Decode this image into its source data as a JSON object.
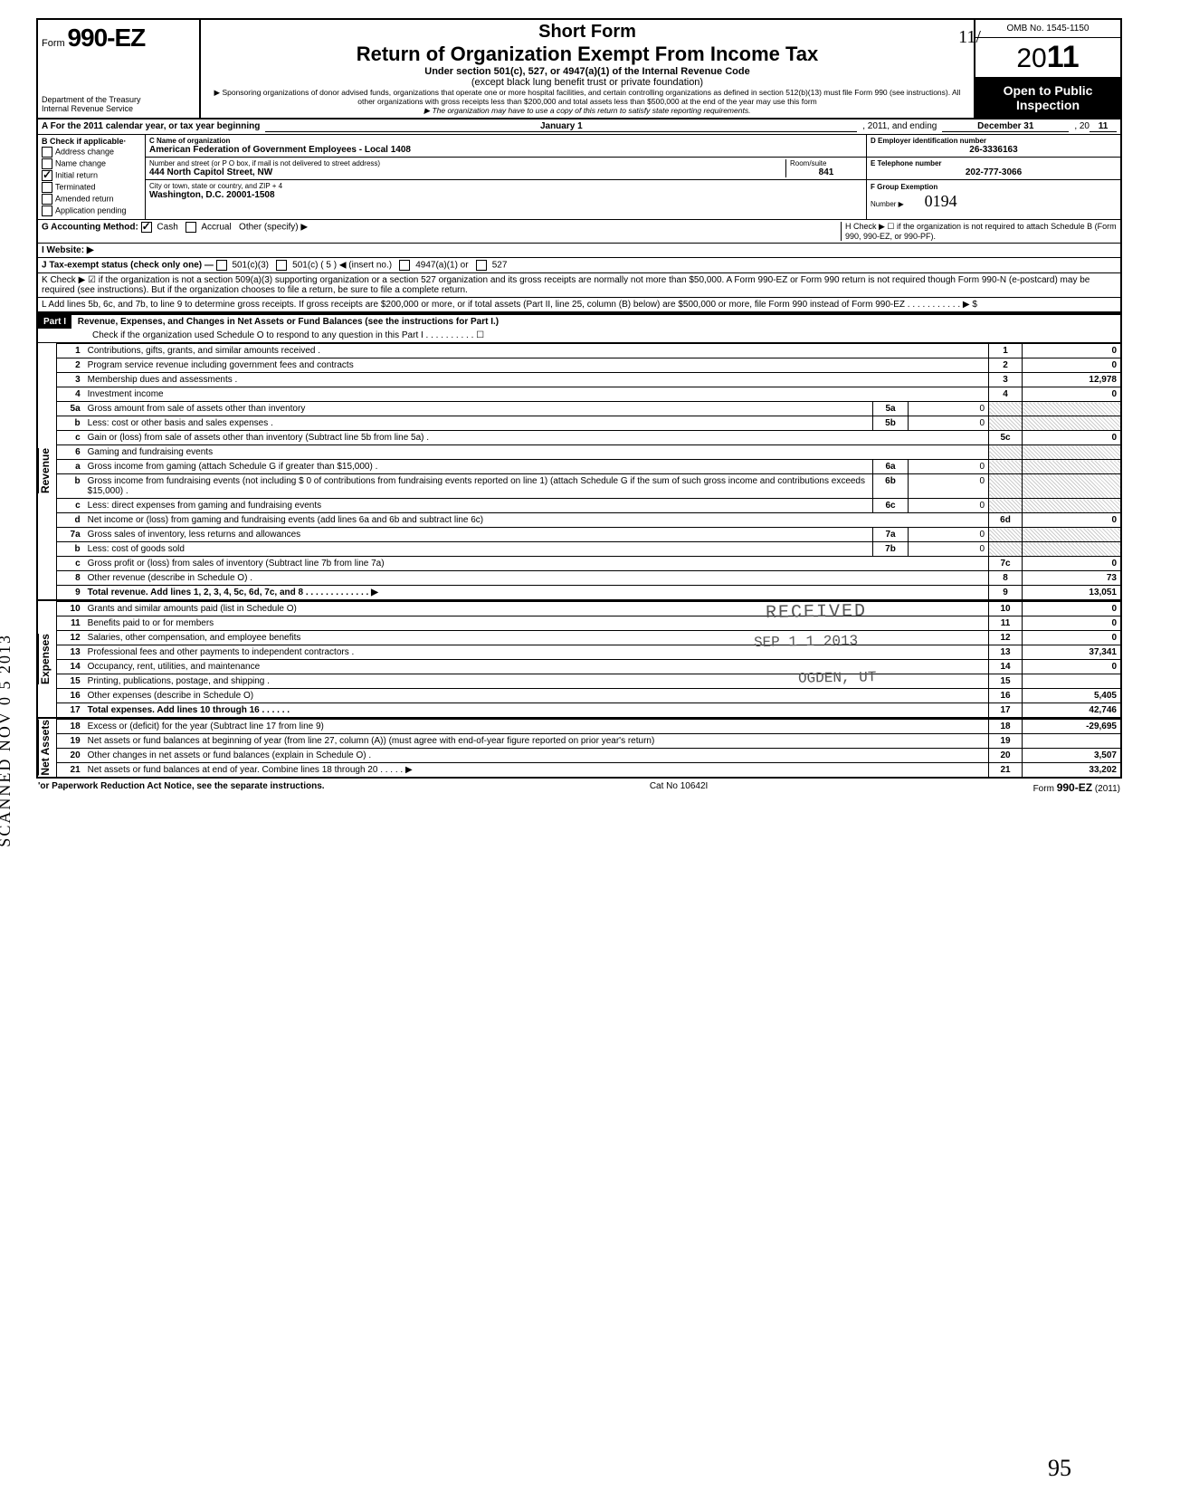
{
  "header": {
    "form_prefix": "Form",
    "form_number": "990-EZ",
    "dept1": "Department of the Treasury",
    "dept2": "Internal Revenue Service",
    "title1": "Short Form",
    "title2": "Return of Organization Exempt From Income Tax",
    "sub": "Under section 501(c), 527, or 4947(a)(1) of the Internal Revenue Code",
    "sub2": "(except black lung benefit trust or private foundation)",
    "note1": "▶ Sponsoring organizations of donor advised funds, organizations that operate one or more hospital facilities, and certain controlling organizations as defined in section 512(b)(13) must file Form 990 (see instructions). All other organizations with gross receipts less than $200,000 and total assets less than $500,000 at the end of the year may use this form",
    "note2": "▶ The organization may have to use a copy of this return to satisfy state reporting requirements.",
    "omb": "OMB No. 1545-1150",
    "year_prefix": "20",
    "year_bold": "11",
    "open": "Open to Public",
    "inspect": "Inspection"
  },
  "secA": {
    "line": "A  For the 2011 calendar year, or tax year beginning",
    "begin": "January 1",
    "mid": ", 2011, and ending",
    "end": "December 31",
    "endyear_lbl": ", 20",
    "endyear": "11"
  },
  "secB": {
    "header": "B  Check if applicable·",
    "opts": [
      "Address change",
      "Name change",
      "Initial return",
      "Terminated",
      "Amended return",
      "Application pending"
    ],
    "checked_index": 2
  },
  "secC": {
    "name_lbl": "C  Name of organization",
    "name": "American Federation of Government Employees - Local 1408",
    "addr_lbl": "Number and street (or P O  box, if mail is not delivered to street address)",
    "addr": "444 North Capitol Street, NW",
    "room_lbl": "Room/suite",
    "room": "841",
    "city_lbl": "City or town, state or country, and ZIP + 4",
    "city": "Washington, D.C. 20001-1508"
  },
  "secD": {
    "lbl": "D Employer identification number",
    "val": "26-3336163"
  },
  "secE": {
    "lbl": "E  Telephone number",
    "val": "202-777-3066"
  },
  "secF": {
    "lbl": "F  Group Exemption",
    "lbl2": "Number ▶",
    "val": "0194"
  },
  "secG": {
    "lbl": "G  Accounting Method:",
    "cash": "Cash",
    "accrual": "Accrual",
    "other": "Other (specify) ▶"
  },
  "secH": {
    "text": "H  Check ▶ ☐ if the organization is not required to attach Schedule B (Form 990, 990-EZ, or 990-PF)."
  },
  "secI": {
    "lbl": "I   Website: ▶"
  },
  "secJ": {
    "lbl": "J  Tax-exempt status (check only one) —",
    "c3": "501(c)(3)",
    "c": "501(c) (  5  ) ◀ (insert no.)",
    "a1": "4947(a)(1) or",
    "s527": "527"
  },
  "secK": {
    "text": "K  Check ▶  ☑  if the organization is not a section 509(a)(3) supporting organization or a section 527 organization and its gross receipts are normally not more than $50,000. A Form 990-EZ or Form 990 return is not required though Form 990-N (e-postcard) may be required (see instructions). But if the organization chooses to file a return, be sure to file a complete return."
  },
  "secL": {
    "text": "L  Add lines 5b, 6c, and 7b, to line 9 to determine gross receipts. If gross receipts are $200,000 or more, or if total assets (Part II, line 25, column (B) below) are $500,000 or more, file Form 990 instead of Form 990-EZ    .   .   .   .   .   .   .   .   .   .   .   ▶  $"
  },
  "part1": {
    "label": "Part I",
    "title": "Revenue, Expenses, and Changes in Net Assets or Fund Balances (see the instructions for Part I.)",
    "check": "Check if the organization used Schedule O to respond to any question in this Part I  .  .  .  .  .  .  .  .  .  .  ☐"
  },
  "sidelabels": {
    "rev": "Revenue",
    "exp": "Expenses",
    "net": "Net Assets"
  },
  "lines": [
    {
      "n": "1",
      "d": "Contributions, gifts, grants, and similar amounts received .",
      "box": "1",
      "v": "0"
    },
    {
      "n": "2",
      "d": "Program service revenue including government fees and contracts",
      "box": "2",
      "v": "0"
    },
    {
      "n": "3",
      "d": "Membership dues and assessments .",
      "box": "3",
      "v": "12,978"
    },
    {
      "n": "4",
      "d": "Investment income",
      "box": "4",
      "v": "0"
    },
    {
      "n": "5a",
      "d": "Gross amount from sale of assets other than inventory",
      "sb": "5a",
      "sv": "0"
    },
    {
      "n": "b",
      "d": "Less: cost or other basis and sales expenses .",
      "sb": "5b",
      "sv": "0"
    },
    {
      "n": "c",
      "d": "Gain or (loss) from sale of assets other than inventory (Subtract line 5b from line 5a) .",
      "box": "5c",
      "v": "0"
    },
    {
      "n": "6",
      "d": "Gaming and fundraising events"
    },
    {
      "n": "a",
      "d": "Gross income from gaming (attach Schedule G if greater than $15,000) .",
      "sb": "6a",
      "sv": "0"
    },
    {
      "n": "b",
      "d": "Gross income from fundraising events (not including  $                      0 of contributions from fundraising events reported on line 1) (attach Schedule G if the sum of such gross income and contributions exceeds $15,000) .",
      "sb": "6b",
      "sv": "0"
    },
    {
      "n": "c",
      "d": "Less: direct expenses from gaming and fundraising events",
      "sb": "6c",
      "sv": "0"
    },
    {
      "n": "d",
      "d": "Net income or (loss) from gaming and fundraising events (add lines 6a and 6b and subtract line 6c)",
      "box": "6d",
      "v": "0"
    },
    {
      "n": "7a",
      "d": "Gross sales of inventory, less returns and allowances",
      "sb": "7a",
      "sv": "0"
    },
    {
      "n": "b",
      "d": "Less: cost of goods sold",
      "sb": "7b",
      "sv": "0"
    },
    {
      "n": "c",
      "d": "Gross profit or (loss) from sales of inventory (Subtract line 7b from line 7a)",
      "box": "7c",
      "v": "0"
    },
    {
      "n": "8",
      "d": "Other revenue (describe in Schedule O) .",
      "box": "8",
      "v": "73"
    },
    {
      "n": "9",
      "d": "Total revenue. Add lines 1, 2, 3, 4, 5c, 6d, 7c, and 8   .   .   .   .   .   .   .   .   .   .   .   .   .   ▶",
      "box": "9",
      "v": "13,051",
      "bold": true
    }
  ],
  "exp_lines": [
    {
      "n": "10",
      "d": "Grants and similar amounts paid (list in Schedule O)",
      "box": "10",
      "v": "0"
    },
    {
      "n": "11",
      "d": "Benefits paid to or for members",
      "box": "11",
      "v": "0"
    },
    {
      "n": "12",
      "d": "Salaries, other compensation, and employee benefits",
      "box": "12",
      "v": "0"
    },
    {
      "n": "13",
      "d": "Professional fees and other payments to independent contractors .",
      "box": "13",
      "v": "37,341"
    },
    {
      "n": "14",
      "d": "Occupancy, rent, utilities, and maintenance",
      "box": "14",
      "v": "0"
    },
    {
      "n": "15",
      "d": "Printing, publications, postage, and shipping .",
      "box": "15",
      "v": ""
    },
    {
      "n": "16",
      "d": "Other expenses (describe in Schedule O)",
      "box": "16",
      "v": "5,405"
    },
    {
      "n": "17",
      "d": "Total expenses. Add lines 10 through 16   .   .   .   .   .   .",
      "box": "17",
      "v": "42,746",
      "bold": true
    }
  ],
  "net_lines": [
    {
      "n": "18",
      "d": "Excess or (deficit) for the year (Subtract line 17 from line 9)",
      "box": "18",
      "v": "-29,695"
    },
    {
      "n": "19",
      "d": "Net assets or fund balances at beginning of year (from line 27, column (A)) (must agree with end-of-year figure reported on prior year's return)",
      "box": "19",
      "v": ""
    },
    {
      "n": "20",
      "d": "Other changes in net assets or fund balances (explain in Schedule O) .",
      "box": "20",
      "v": "3,507"
    },
    {
      "n": "21",
      "d": "Net assets or fund balances at end of year. Combine lines 18 through 20    .   .   .   .   .   ▶",
      "box": "21",
      "v": "33,202"
    }
  ],
  "footer": {
    "left": "'or Paperwork Reduction Act Notice, see the separate instructions.",
    "mid": "Cat No  10642I",
    "right": "Form 990-EZ (2011)"
  },
  "stamps": {
    "received": "RECEIVED",
    "date": "SEP 1 1 2013",
    "ogden": "OGDEN, UT",
    "scanned": "SCANNED NOV 0 5 2013",
    "hand95": "95",
    "hand_init": "11/"
  },
  "colors": {
    "black": "#000000",
    "white": "#ffffff",
    "gray": "#888888"
  }
}
